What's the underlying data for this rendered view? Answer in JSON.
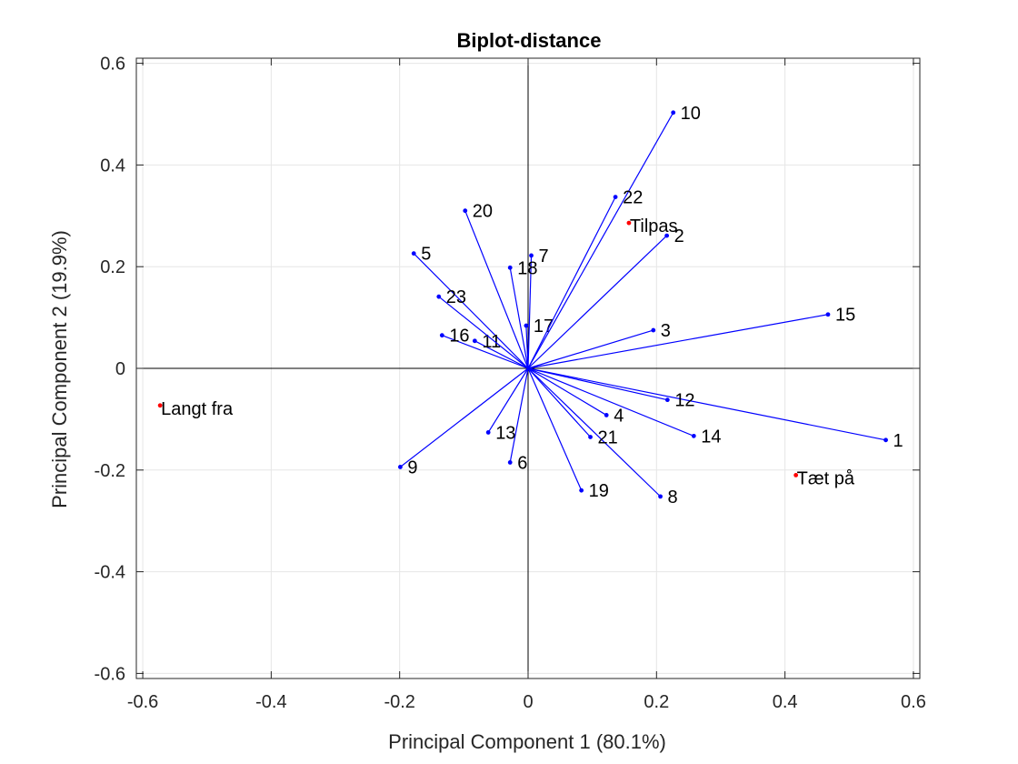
{
  "chart_data": {
    "type": "scatter",
    "subtype": "biplot",
    "title": "Biplot-distance",
    "xlabel": "Principal Component 1 (80.1%)",
    "ylabel": "Principal Component 2 (19.9%)",
    "xlim": [
      -0.61,
      0.61
    ],
    "ylim": [
      -0.61,
      0.61
    ],
    "xticks": [
      -0.6,
      -0.4,
      -0.2,
      0,
      0.2,
      0.4,
      0.6
    ],
    "yticks": [
      -0.6,
      -0.4,
      -0.2,
      0,
      0.2,
      0.4,
      0.6
    ],
    "xtick_labels": [
      "-0.6",
      "-0.4",
      "-0.2",
      "0",
      "0.2",
      "0.4",
      "0.6"
    ],
    "ytick_labels": [
      "-0.6",
      "-0.4",
      "-0.2",
      "0",
      "0.2",
      "0.4",
      "0.6"
    ],
    "grid": true,
    "colors": {
      "vector": "#0000ff",
      "score": "#ff0000",
      "grid": "#e6e6e6",
      "zero_axis": "#000000"
    },
    "vectors": [
      {
        "label": "1",
        "x": 0.557,
        "y": -0.141
      },
      {
        "label": "2",
        "x": 0.216,
        "y": 0.261
      },
      {
        "label": "3",
        "x": 0.195,
        "y": 0.075
      },
      {
        "label": "4",
        "x": 0.122,
        "y": -0.092
      },
      {
        "label": "5",
        "x": -0.178,
        "y": 0.226
      },
      {
        "label": "6",
        "x": -0.028,
        "y": -0.185
      },
      {
        "label": "7",
        "x": 0.005,
        "y": 0.222
      },
      {
        "label": "8",
        "x": 0.206,
        "y": -0.252
      },
      {
        "label": "9",
        "x": -0.199,
        "y": -0.194
      },
      {
        "label": "10",
        "x": 0.226,
        "y": 0.503
      },
      {
        "label": "11",
        "x": -0.083,
        "y": 0.054
      },
      {
        "label": "12",
        "x": 0.217,
        "y": -0.062
      },
      {
        "label": "13",
        "x": -0.062,
        "y": -0.126
      },
      {
        "label": "14",
        "x": 0.258,
        "y": -0.133
      },
      {
        "label": "15",
        "x": 0.467,
        "y": 0.106
      },
      {
        "label": "16",
        "x": -0.134,
        "y": 0.065
      },
      {
        "label": "17",
        "x": -0.003,
        "y": 0.084
      },
      {
        "label": "18",
        "x": -0.028,
        "y": 0.198
      },
      {
        "label": "19",
        "x": 0.083,
        "y": -0.24
      },
      {
        "label": "20",
        "x": -0.098,
        "y": 0.31
      },
      {
        "label": "21",
        "x": 0.097,
        "y": -0.135
      },
      {
        "label": "22",
        "x": 0.136,
        "y": 0.337
      },
      {
        "label": "23",
        "x": -0.139,
        "y": 0.141
      }
    ],
    "scores": [
      {
        "label": "Langt fra",
        "x": -0.573,
        "y": -0.073
      },
      {
        "label": "Tilpas",
        "x": 0.157,
        "y": 0.286
      },
      {
        "label": "Tæt på",
        "x": 0.417,
        "y": -0.21
      }
    ]
  }
}
